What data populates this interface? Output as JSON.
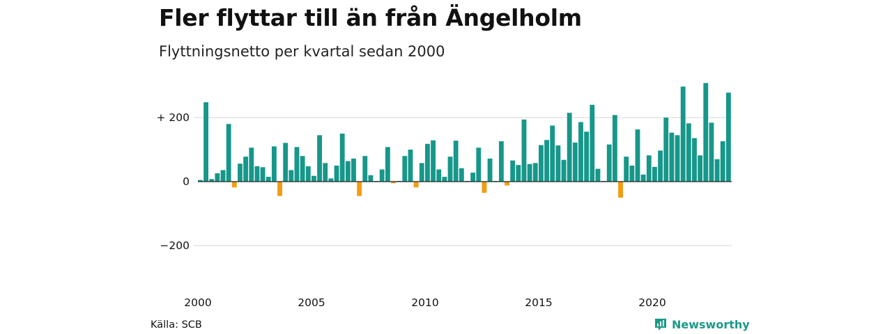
{
  "header": {
    "title": "Fler flyttar till än från Ängelholm",
    "subtitle": "Flyttningsnetto per kvartal sedan 2000"
  },
  "footer": {
    "source": "Källa: SCB",
    "brand": "Newsworthy",
    "brand_icon": "newsworthy-logo-icon"
  },
  "colors": {
    "positive": "#16978a",
    "negative": "#f39c12",
    "grid": "#dddddd",
    "brand": "#1a9a88"
  },
  "chart_data": {
    "type": "bar",
    "x_start_year": 2000,
    "quarters_per_year": 4,
    "values": [
      5,
      248,
      8,
      26,
      36,
      180,
      -18,
      56,
      78,
      106,
      48,
      45,
      15,
      110,
      -45,
      121,
      36,
      108,
      80,
      48,
      18,
      145,
      58,
      10,
      50,
      150,
      64,
      72,
      -45,
      80,
      20,
      2,
      38,
      108,
      -5,
      2,
      80,
      100,
      -18,
      58,
      118,
      129,
      38,
      15,
      78,
      128,
      42,
      2,
      28,
      106,
      -35,
      72,
      2,
      126,
      -12,
      66,
      52,
      194,
      55,
      58,
      114,
      130,
      175,
      113,
      68,
      215,
      122,
      186,
      156,
      240,
      40,
      2,
      116,
      208,
      -50,
      78,
      50,
      163,
      22,
      82,
      46,
      97,
      200,
      153,
      145,
      297,
      182,
      136,
      82,
      308,
      184,
      70,
      126,
      278
    ],
    "x_tick_labels": [
      "2000",
      "2005",
      "2010",
      "2015",
      "2020"
    ],
    "y_tick_labels": [
      "+ 200",
      "0",
      "−200"
    ],
    "y_ticks": [
      200,
      0,
      -200
    ],
    "ylim": [
      -300,
      330
    ],
    "grid": true,
    "legend": "none"
  }
}
